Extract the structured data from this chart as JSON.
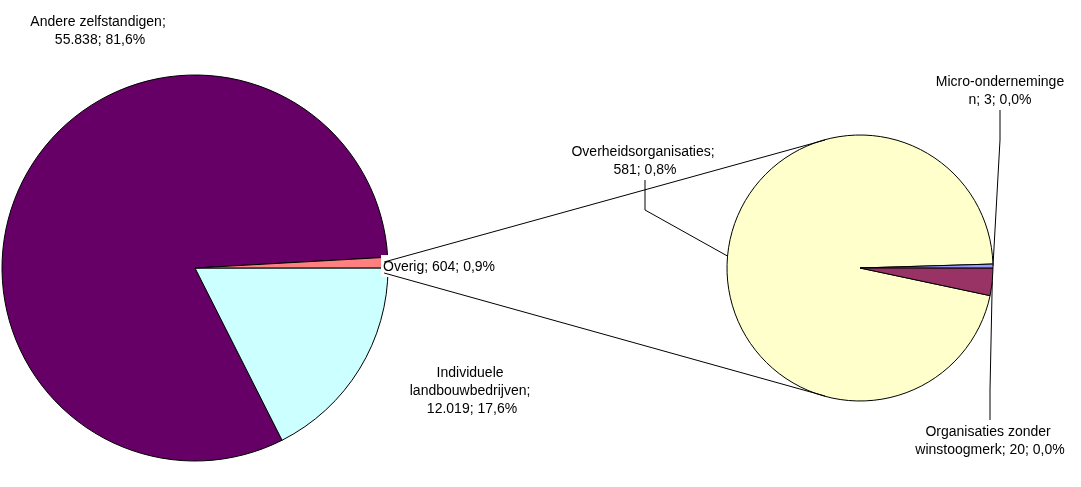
{
  "chart_data": [
    {
      "type": "pie",
      "categories": [
        "Andere zelfstandigen",
        "Individuele landbouwbedrijven",
        "Overig"
      ],
      "values": [
        55838,
        12019,
        604
      ],
      "colors": [
        "#660066",
        "#ccffff",
        "#ff8080"
      ],
      "value_labels": [
        "; 55.838; 81,6%",
        "; 12.019; 17,6%",
        "; 604; 0,9%"
      ]
    },
    {
      "type": "pie",
      "categories": [
        "Overheidsorganisaties",
        "Micro-ondernemingen",
        "Organisaties zonder winstoogmerk"
      ],
      "values": [
        581,
        3,
        20
      ],
      "colors": [
        "#ffffcc",
        "#9999ff",
        "#993366"
      ],
      "value_labels": [
        "; 581; 0,8%",
        "; 3; 0,0%",
        "; 20; 0,0%"
      ]
    }
  ]
}
